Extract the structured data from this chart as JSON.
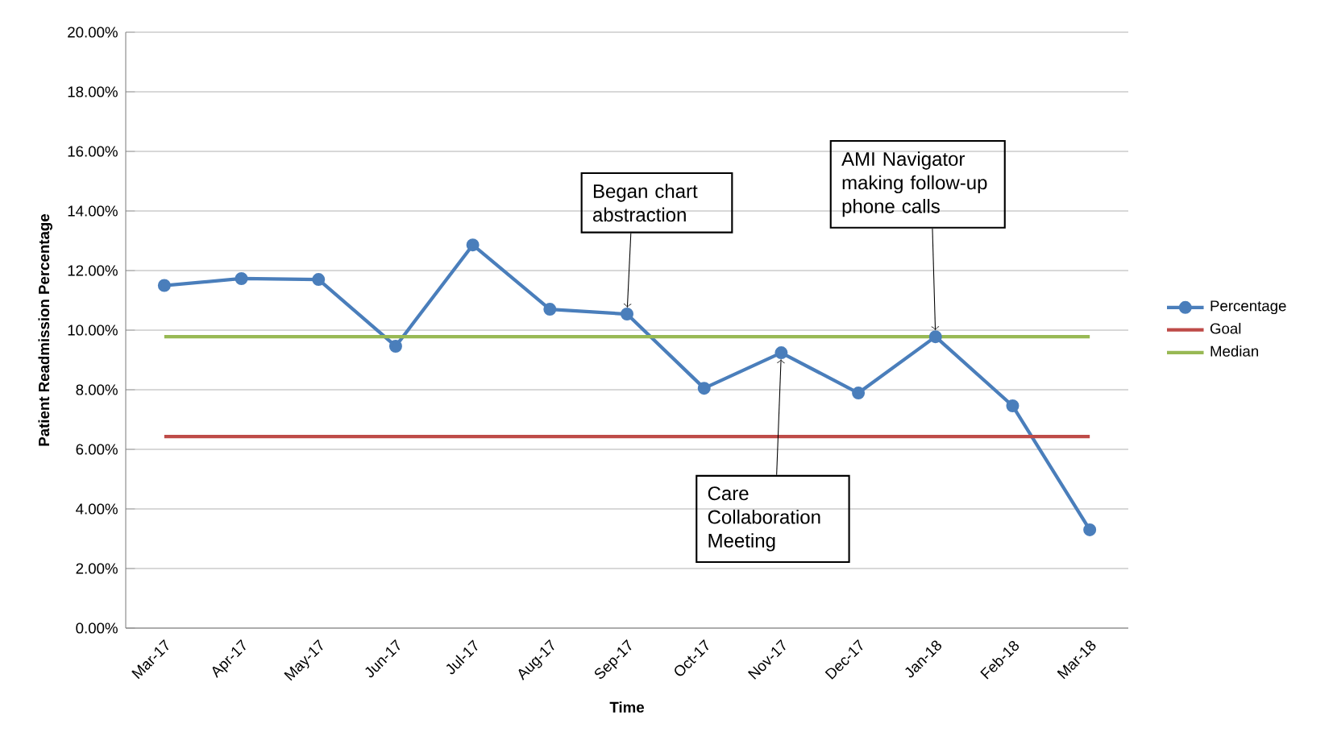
{
  "chart_data": {
    "type": "line",
    "xlabel": "Time",
    "ylabel": "Patient Readmission Percentage",
    "categories": [
      "Mar-17",
      "Apr-17",
      "May-17",
      "Jun-17",
      "Jul-17",
      "Aug-17",
      "Sep-17",
      "Oct-17",
      "Nov-17",
      "Dec-17",
      "Jan-18",
      "Feb-18",
      "Mar-18"
    ],
    "series": [
      {
        "name": "Percentage",
        "color": "#4a7ebb",
        "marker": "circle",
        "values": [
          11.5,
          11.73,
          11.7,
          9.46,
          12.86,
          10.7,
          10.54,
          8.05,
          9.24,
          7.89,
          9.78,
          7.46,
          3.3
        ]
      },
      {
        "name": "Goal",
        "color": "#be4b48",
        "marker": "none",
        "values": [
          6.43,
          6.43,
          6.43,
          6.43,
          6.43,
          6.43,
          6.43,
          6.43,
          6.43,
          6.43,
          6.43,
          6.43,
          6.43
        ]
      },
      {
        "name": "Median",
        "color": "#98b954",
        "marker": "none",
        "values": [
          9.78,
          9.78,
          9.78,
          9.78,
          9.78,
          9.78,
          9.78,
          9.78,
          9.78,
          9.78,
          9.78,
          9.78,
          9.78
        ]
      }
    ],
    "ylim": [
      0,
      20
    ],
    "yticks": [
      {
        "value": 0,
        "label": "0.00%"
      },
      {
        "value": 2,
        "label": "2.00%"
      },
      {
        "value": 4,
        "label": "4.00%"
      },
      {
        "value": 6,
        "label": "6.00%"
      },
      {
        "value": 8,
        "label": "8.00%"
      },
      {
        "value": 10,
        "label": "10.00%"
      },
      {
        "value": 12,
        "label": "12.00%"
      },
      {
        "value": 14,
        "label": "14.00%"
      },
      {
        "value": 16,
        "label": "16.00%"
      },
      {
        "value": 18,
        "label": "18.00%"
      },
      {
        "value": 20,
        "label": "20.00%"
      }
    ],
    "grid": "y",
    "legend": "right",
    "line_style": "solid",
    "annotations": [
      {
        "text": "Began chart abstraction",
        "x": "Sep-17",
        "y": 10.54
      },
      {
        "text": "Care Collaboration Meeting",
        "x": "Nov-17",
        "y": 9.24
      },
      {
        "text": "AMI Navigator making follow-up phone calls",
        "x": "Jan-18",
        "y": 9.78
      }
    ]
  }
}
